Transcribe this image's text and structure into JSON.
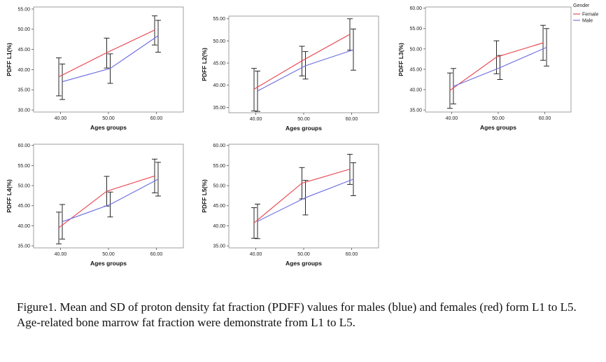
{
  "chart_data": [
    {
      "type": "line",
      "ylabel": "PDFF L1(%)",
      "xlabel": "Ages groups",
      "categories": [
        "40.00",
        "50.00",
        "60.00"
      ],
      "yticks": [
        "30.00",
        "35.00",
        "40.00",
        "45.00",
        "50.00",
        "55.00"
      ],
      "ylim": [
        29.5,
        55.5
      ],
      "series": [
        {
          "name": "Female",
          "color": "#e8414a",
          "means": [
            38.2,
            44.2,
            49.8
          ],
          "upper": [
            42.9,
            47.8,
            53.3
          ],
          "lower": [
            33.5,
            40.4,
            46.1
          ]
        },
        {
          "name": "Male",
          "color": "#6b6be0",
          "means": [
            37.0,
            40.3,
            48.4
          ],
          "upper": [
            41.4,
            43.9,
            52.2
          ],
          "lower": [
            32.6,
            36.6,
            44.3
          ]
        }
      ]
    },
    {
      "type": "line",
      "ylabel": "PDFF L2(%)",
      "xlabel": "Ages groups",
      "categories": [
        "40.00",
        "50.00",
        "60.00"
      ],
      "yticks": [
        "35.00",
        "40.00",
        "45.00",
        "50.00",
        "55.00"
      ],
      "ylim": [
        33.8,
        55.6
      ],
      "series": [
        {
          "name": "Female",
          "color": "#e8414a",
          "means": [
            39.1,
            45.5,
            51.5
          ],
          "upper": [
            43.8,
            48.8,
            55.0
          ],
          "lower": [
            34.2,
            42.1,
            47.9
          ]
        },
        {
          "name": "Male",
          "color": "#6b6be0",
          "means": [
            38.7,
            44.4,
            48.0
          ],
          "upper": [
            43.2,
            47.6,
            52.7
          ],
          "lower": [
            34.1,
            41.4,
            43.4
          ]
        }
      ]
    },
    {
      "type": "line",
      "ylabel": "PDFF L3(%)",
      "xlabel": "Ages groups",
      "categories": [
        "40.00",
        "50.00",
        "60.00"
      ],
      "yticks": [
        "35.00",
        "40.00",
        "45.00",
        "50.00",
        "55.00",
        "60.00"
      ],
      "ylim": [
        34.5,
        60.3
      ],
      "legend": {
        "title": "Gender",
        "entries": [
          "Female",
          "Male"
        ],
        "position": "top-right"
      },
      "series": [
        {
          "name": "Female",
          "color": "#e8414a",
          "means": [
            39.8,
            48.0,
            51.5
          ],
          "upper": [
            44.1,
            52.0,
            55.8
          ],
          "lower": [
            35.4,
            43.9,
            47.2
          ]
        },
        {
          "name": "Male",
          "color": "#6b6be0",
          "means": [
            40.8,
            45.4,
            50.4
          ],
          "upper": [
            45.2,
            48.4,
            55.0
          ],
          "lower": [
            36.5,
            42.5,
            45.8
          ]
        }
      ]
    },
    {
      "type": "line",
      "ylabel": "PDFF L4(%)",
      "xlabel": "Ages groups",
      "categories": [
        "40.00",
        "50.00",
        "60.00"
      ],
      "yticks": [
        "35.00",
        "40.00",
        "45.00",
        "50.00",
        "55.00",
        "60.00"
      ],
      "ylim": [
        34.5,
        60.3
      ],
      "series": [
        {
          "name": "Female",
          "color": "#e8414a",
          "means": [
            39.5,
            48.6,
            52.4
          ],
          "upper": [
            43.4,
            52.3,
            56.6
          ],
          "lower": [
            35.5,
            44.9,
            48.2
          ]
        },
        {
          "name": "Male",
          "color": "#6b6be0",
          "means": [
            41.0,
            45.3,
            51.6
          ],
          "upper": [
            45.3,
            48.4,
            55.8
          ],
          "lower": [
            36.7,
            42.2,
            47.4
          ]
        }
      ]
    },
    {
      "type": "line",
      "ylabel": "PDFF L5(%)",
      "xlabel": "Ages groups",
      "categories": [
        "40.00",
        "50.00",
        "60.00"
      ],
      "yticks": [
        "35.00",
        "40.00",
        "45.00",
        "50.00",
        "55.00",
        "60.00"
      ],
      "ylim": [
        34.5,
        60.3
      ],
      "series": [
        {
          "name": "Female",
          "color": "#e8414a",
          "means": [
            40.7,
            50.6,
            54.1
          ],
          "upper": [
            44.5,
            54.5,
            57.8
          ],
          "lower": [
            36.9,
            46.7,
            50.3
          ]
        },
        {
          "name": "Male",
          "color": "#6b6be0",
          "means": [
            41.1,
            47.0,
            51.6
          ],
          "upper": [
            45.4,
            51.3,
            55.7
          ],
          "lower": [
            36.8,
            42.7,
            47.5
          ]
        }
      ]
    }
  ],
  "caption": "Figure1. Mean and SD of proton density fat fraction (PDFF) values for males (blue) and females (red) form L1 to L5. Age-related bone marrow  fat fraction were demonstrate from L1 to L5."
}
